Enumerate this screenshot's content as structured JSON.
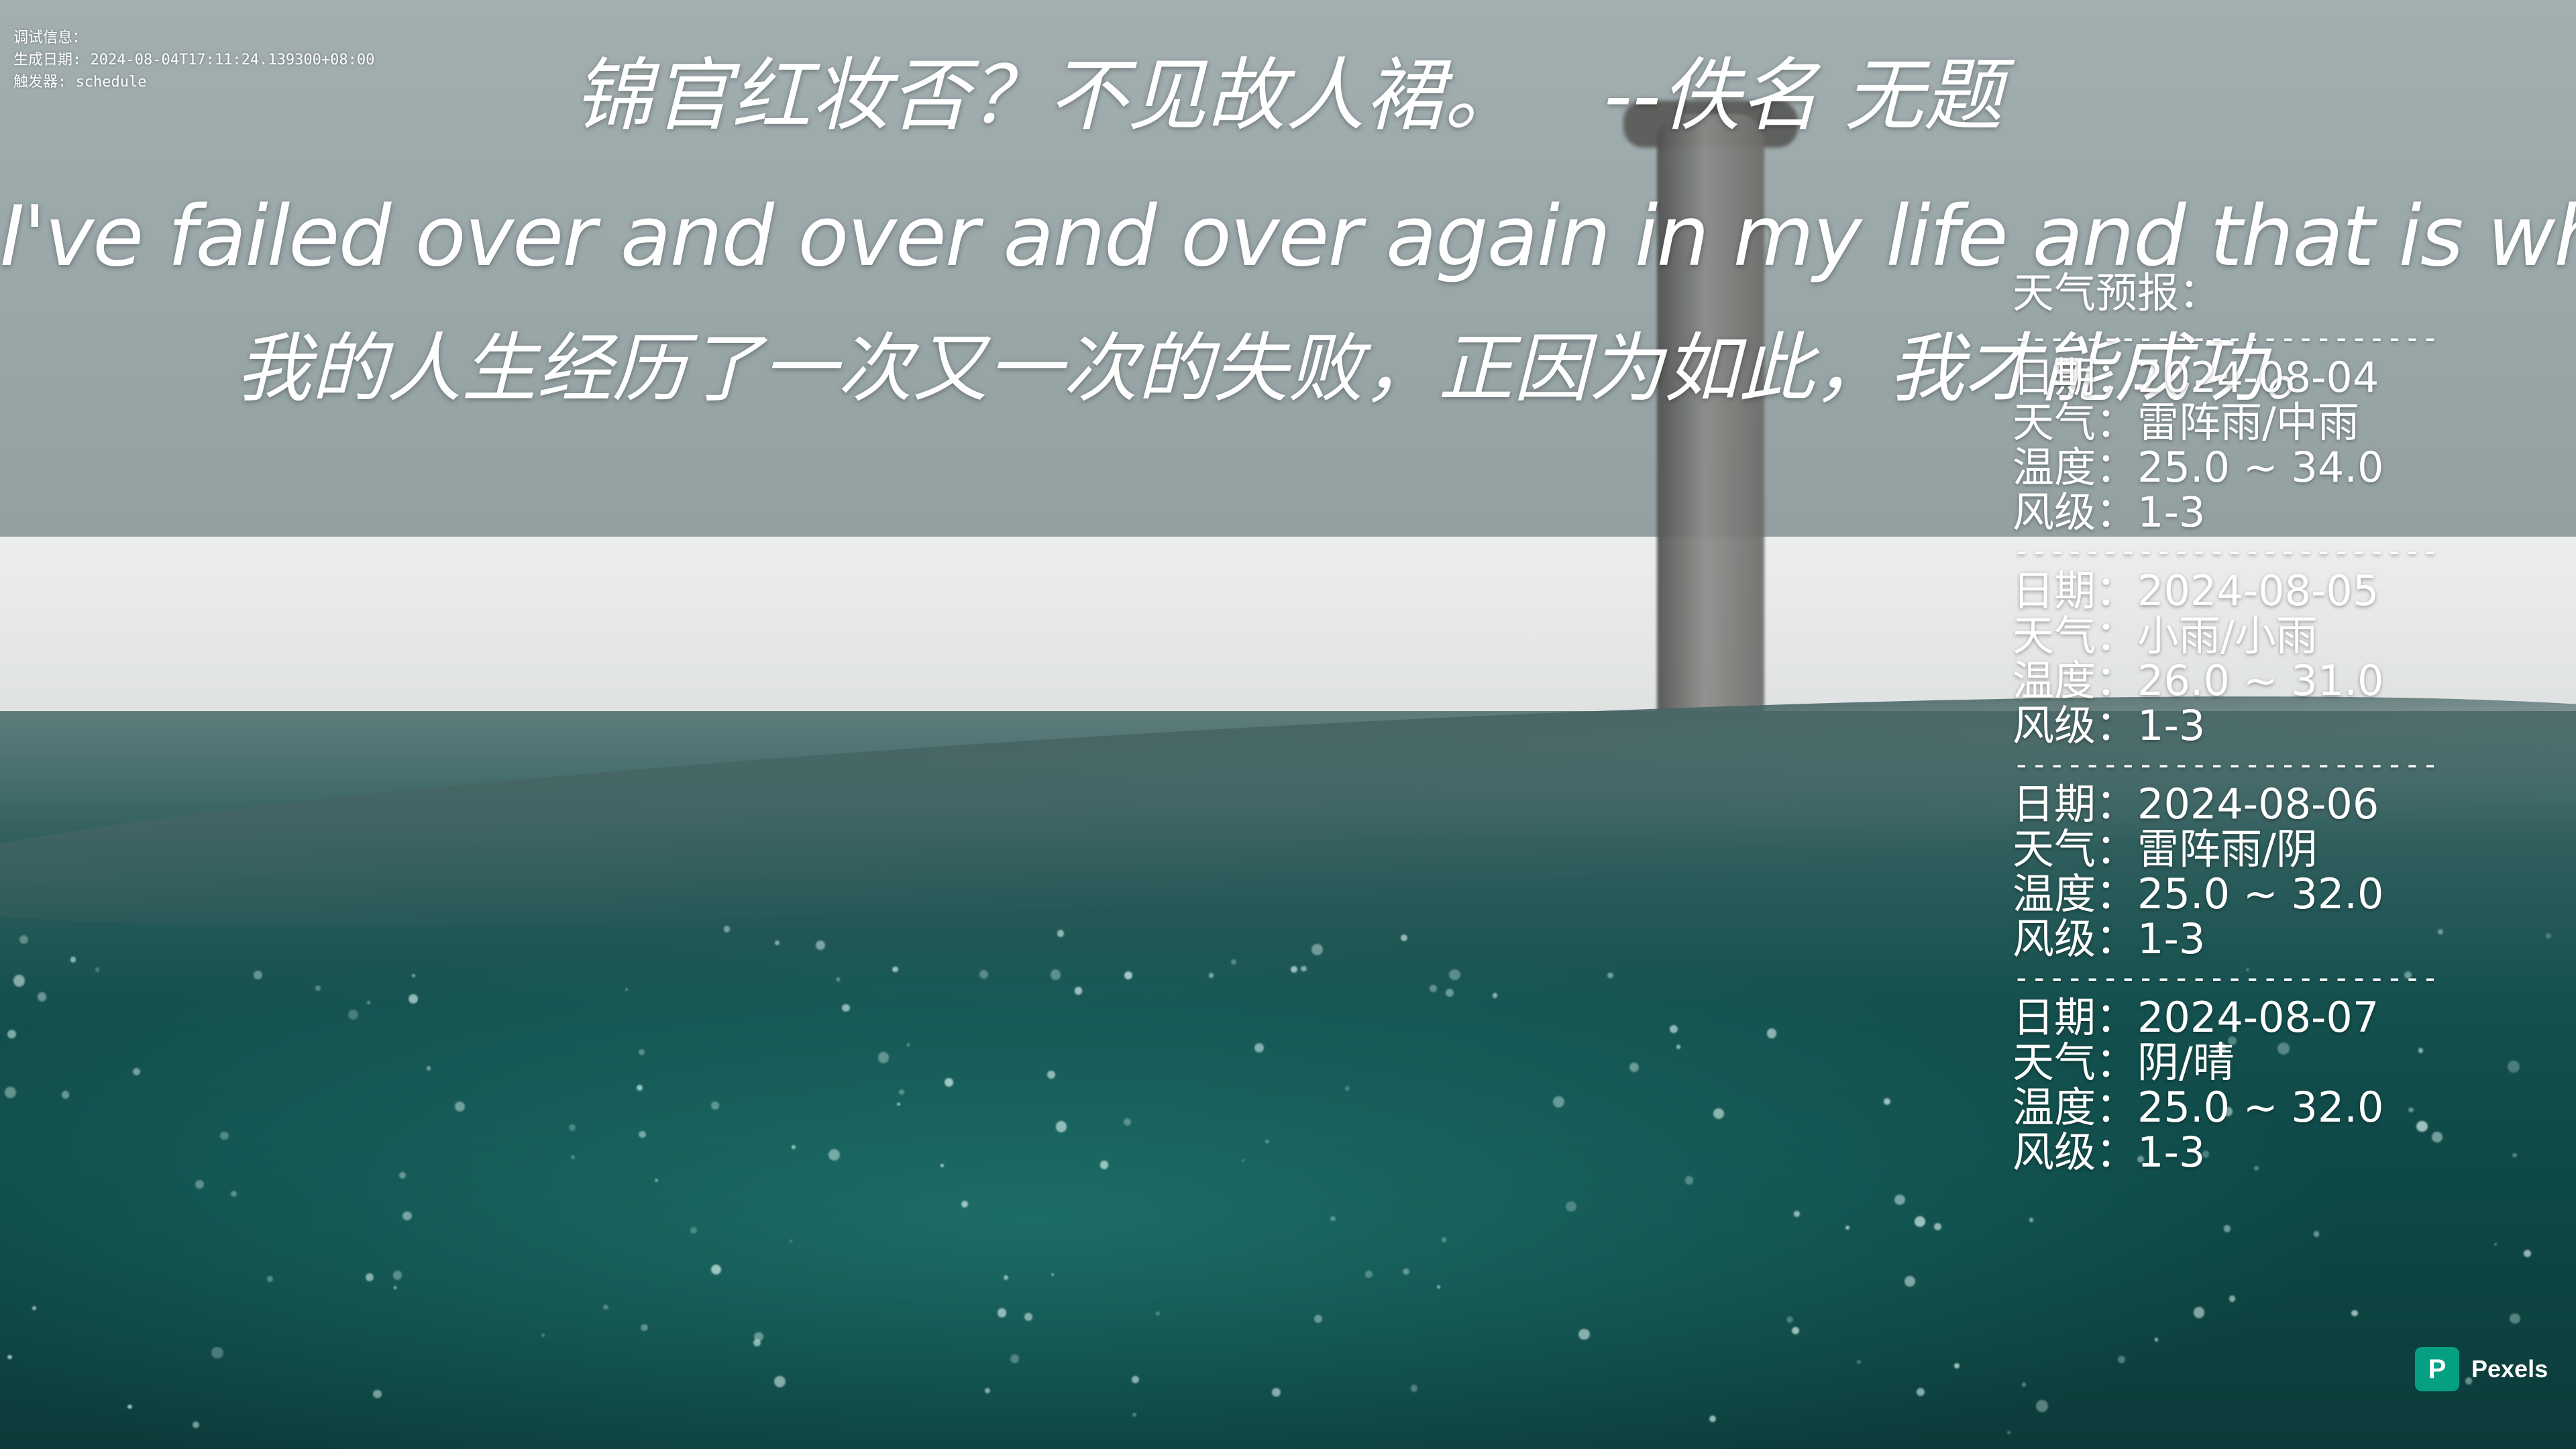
{
  "debug": {
    "label": "调试信息：",
    "generated": "生成日期: 2024-08-04T17:11:24.139300+08:00",
    "trigger": "触发器: schedule"
  },
  "poem": {
    "line": "锦官红妆否？不见故人裙。",
    "source": "--佚名 无题"
  },
  "quote": {
    "english": "I've failed over and over and over again in my life and that is why I succeed.",
    "chinese": "我的人生经历了一次又一次的失败，正因为如此，我才能成功。"
  },
  "weather": {
    "title": "天气预报：",
    "separator": "----------------------------",
    "days": [
      {
        "date": "日期：2024-08-04",
        "condition": "天气：雷阵雨/中雨",
        "temp": "温度：25.0 ~ 34.0",
        "wind": "风级：1-3"
      },
      {
        "date": "日期：2024-08-05",
        "condition": "天气：小雨/小雨",
        "temp": "温度：26.0 ~ 31.0",
        "wind": "风级：1-3"
      },
      {
        "date": "日期：2024-08-06",
        "condition": "天气：雷阵雨/阴",
        "temp": "温度：25.0 ~ 32.0",
        "wind": "风级：1-3"
      },
      {
        "date": "日期：2024-08-07",
        "condition": "天气：阴/晴",
        "temp": "温度：25.0 ~ 32.0",
        "wind": "风级：1-3"
      }
    ]
  },
  "credit": {
    "logo_letter": "P",
    "label": "Pexels",
    "brand_color": "#05a081"
  }
}
